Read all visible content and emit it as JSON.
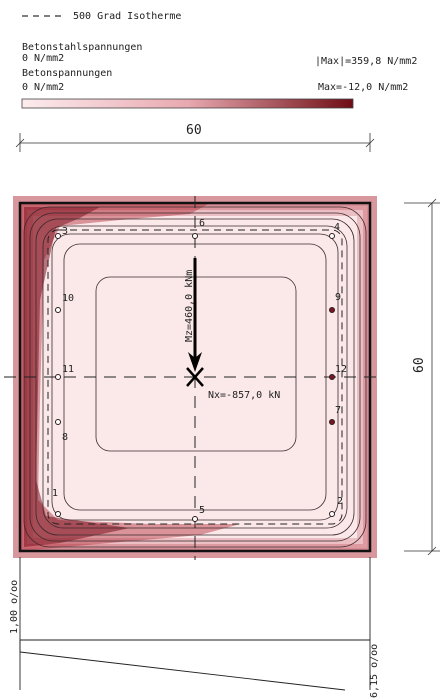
{
  "legend": {
    "isotherm_label": "500 Grad Isotherme",
    "steel_title": "Betonstahlspannungen",
    "steel_min": "0 N/mm2",
    "steel_max": "|Max|=359,8 N/mm2",
    "concrete_title": "Betonspannungen",
    "concrete_min": "0 N/mm2",
    "concrete_max": "Max=-12,0 N/mm2",
    "scale_colors": [
      "#fbe9ea",
      "#6f0c14"
    ]
  },
  "dimensions": {
    "width_label": "60",
    "height_label": "60"
  },
  "bars": [
    {
      "id": "1",
      "state": "open"
    },
    {
      "id": "2",
      "state": "open"
    },
    {
      "id": "3",
      "state": "open"
    },
    {
      "id": "4",
      "state": "open"
    },
    {
      "id": "5",
      "state": "open"
    },
    {
      "id": "6",
      "state": "open"
    },
    {
      "id": "7",
      "state": "filled"
    },
    {
      "id": "8",
      "state": "open"
    },
    {
      "id": "9",
      "state": "filled"
    },
    {
      "id": "10",
      "state": "open"
    },
    {
      "id": "11",
      "state": "open"
    },
    {
      "id": "12",
      "state": "filled"
    }
  ],
  "forces": {
    "moment_label": "Mz=460,0 kNm",
    "normal_label": "Nx=-857,0 kN"
  },
  "strain": {
    "top_label": "1,00 o/oo",
    "bottom_label": "6,15 o/oo"
  }
}
